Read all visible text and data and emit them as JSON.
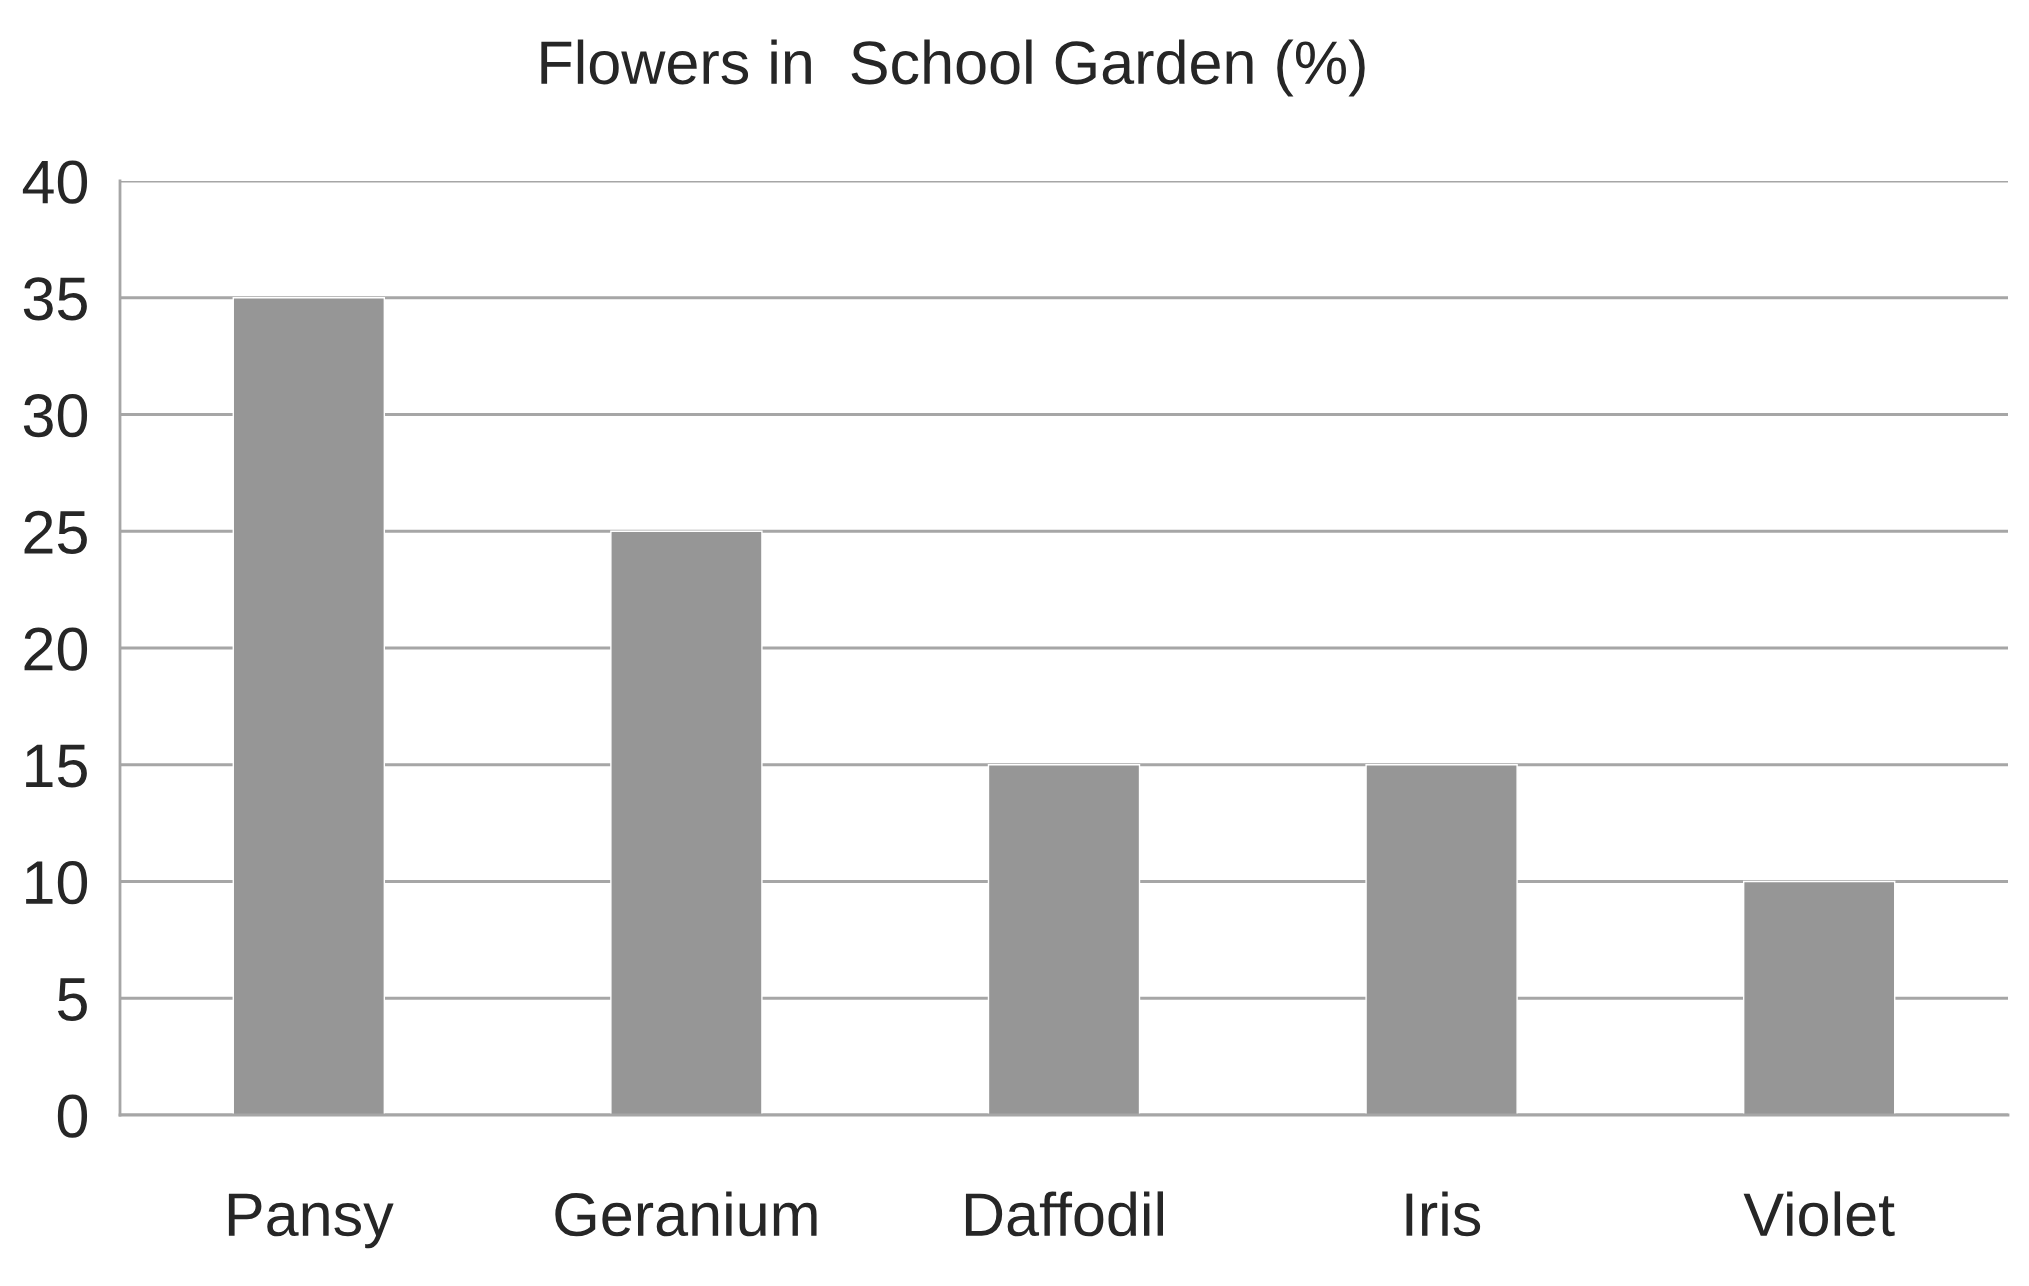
{
  "chart_data": {
    "type": "bar",
    "title": "Flowers in  School Garden (%)",
    "categories": [
      "Pansy",
      "Geranium",
      "Daffodil",
      "Iris",
      "Violet"
    ],
    "values": [
      35,
      25,
      15,
      15,
      10
    ],
    "color": "#969696",
    "ylim": [
      0,
      40
    ],
    "yticks": [
      0,
      5,
      10,
      15,
      20,
      25,
      30,
      35,
      40
    ],
    "grid": "y",
    "legend": false
  }
}
